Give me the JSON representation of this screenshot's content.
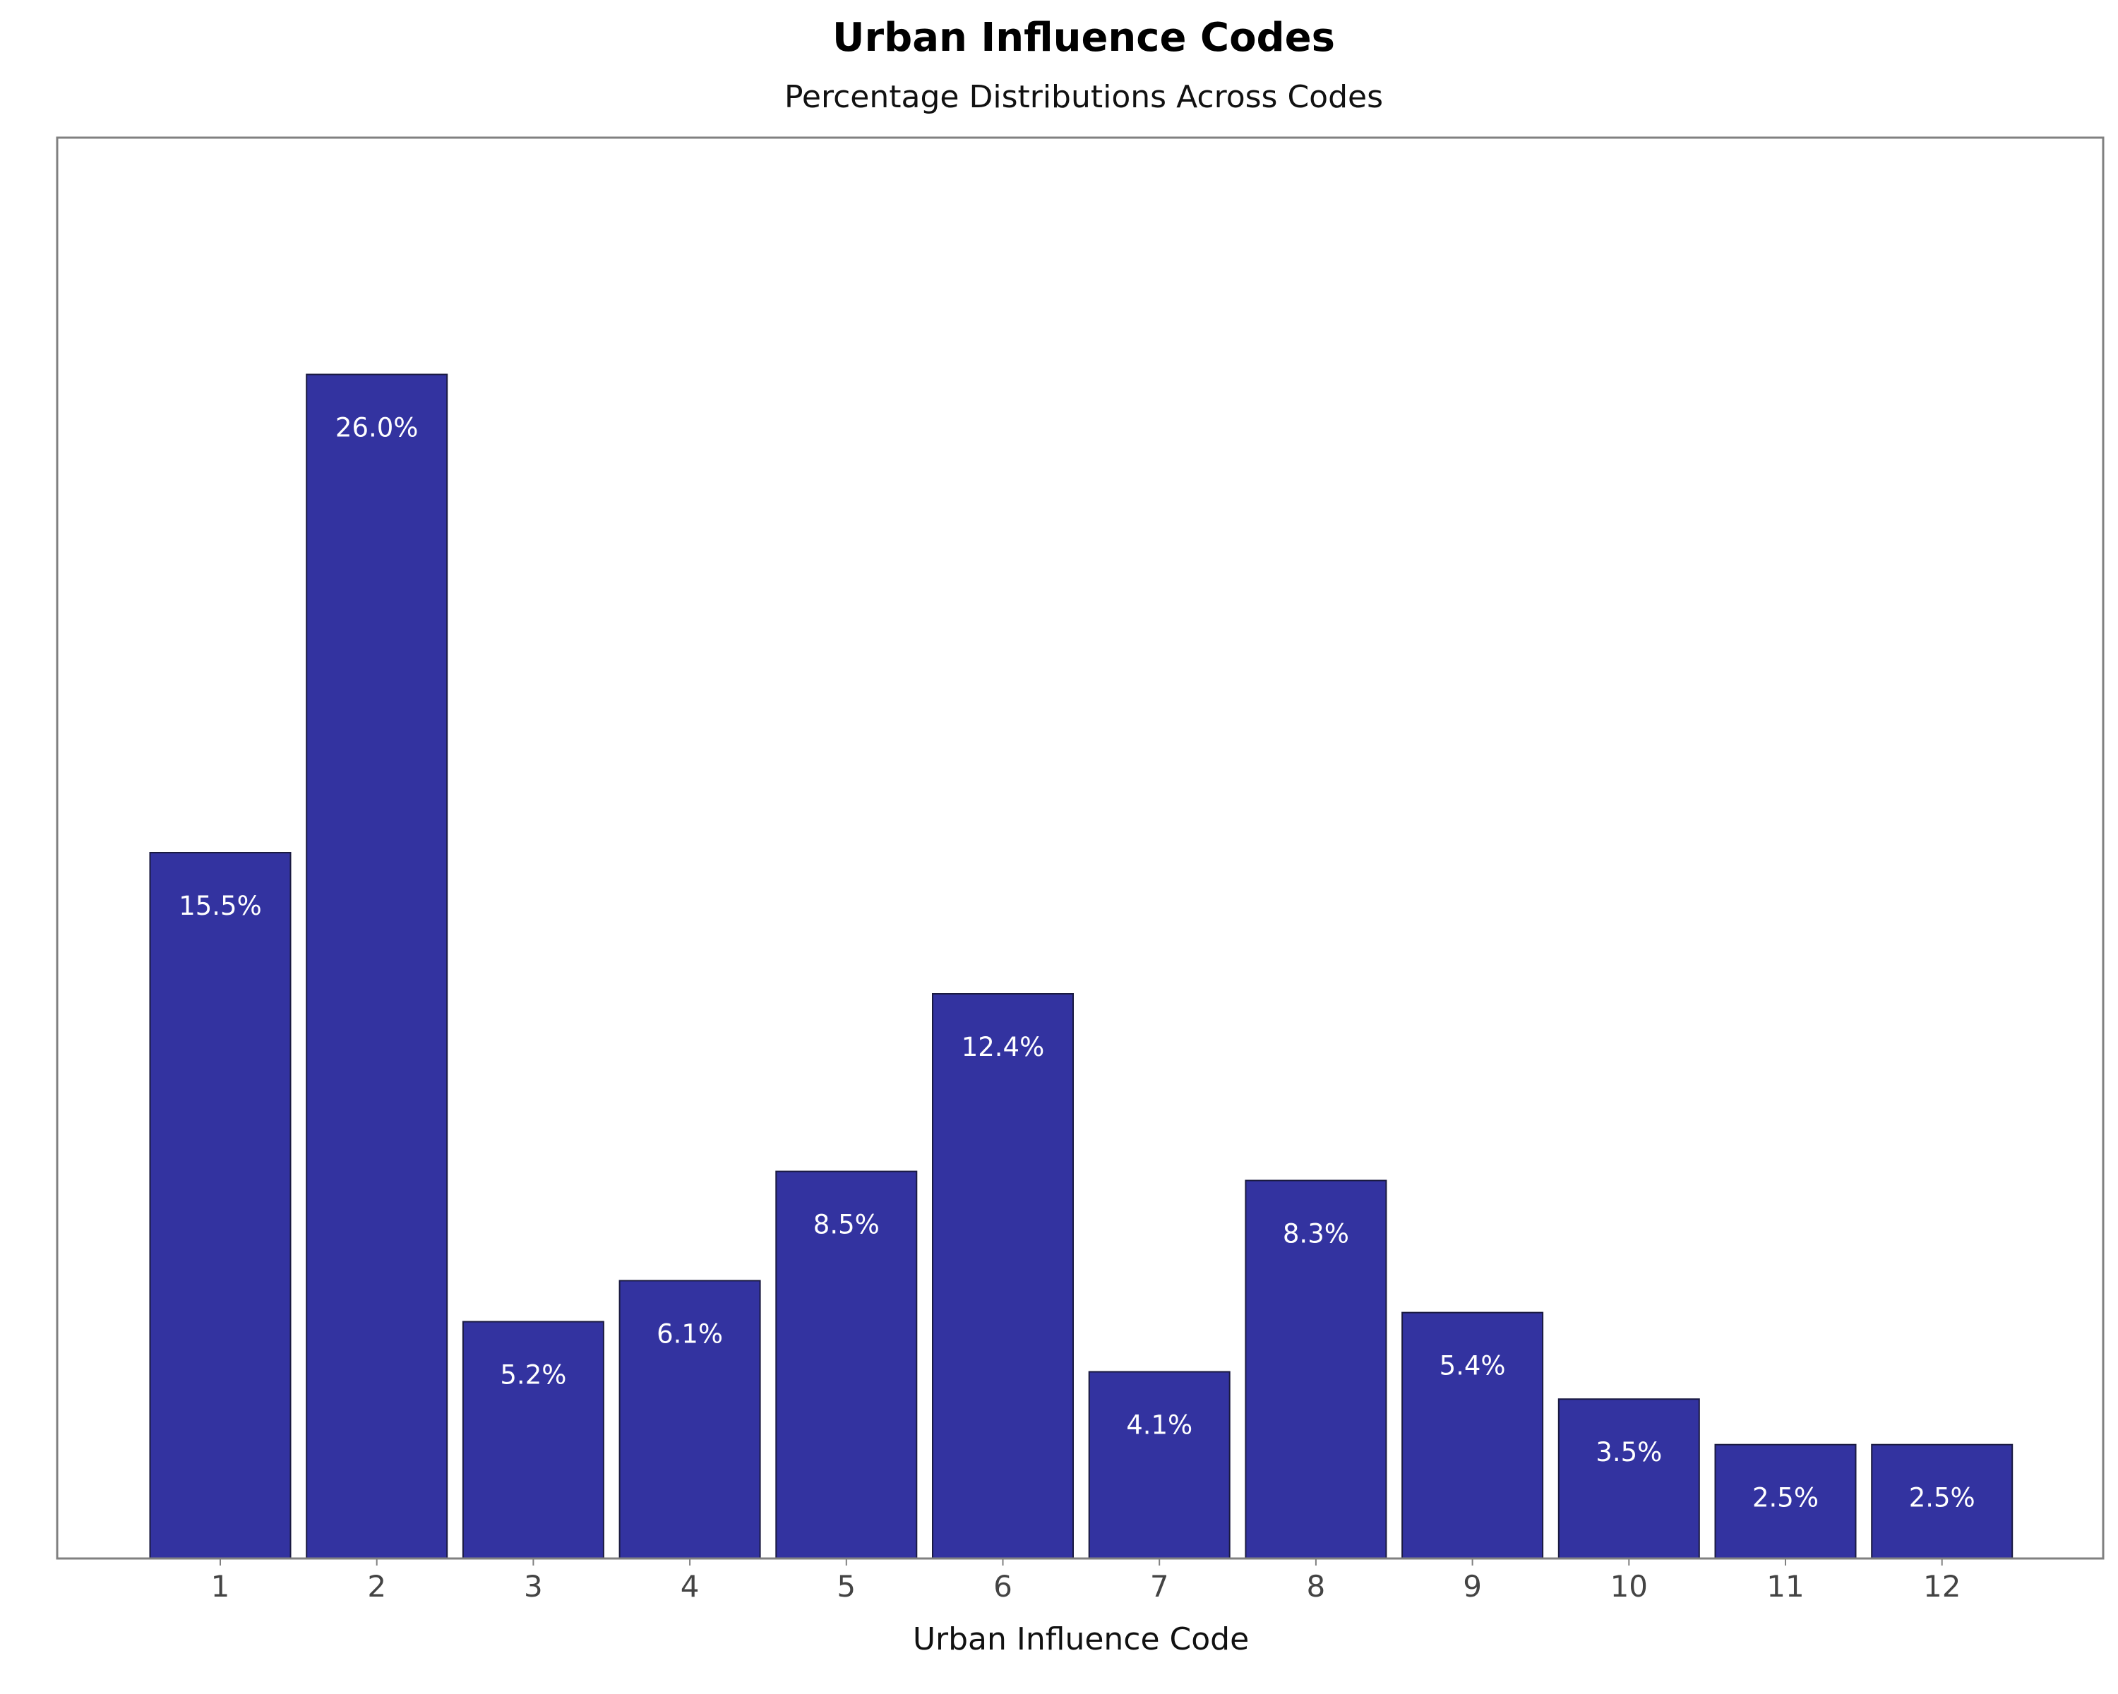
{
  "chart_data": {
    "type": "bar",
    "title": "Urban Influence Codes",
    "subtitle": "Percentage Distributions Across Codes",
    "xlabel": "Urban Influence Code",
    "ylabel": "",
    "categories": [
      "1",
      "2",
      "3",
      "4",
      "5",
      "6",
      "7",
      "8",
      "9",
      "10",
      "11",
      "12"
    ],
    "values": [
      15.5,
      26.0,
      5.2,
      6.1,
      8.5,
      12.4,
      4.1,
      8.3,
      5.4,
      3.5,
      2.5,
      2.5
    ],
    "data_labels": [
      "15.5%",
      "26.0%",
      "5.2%",
      "6.1%",
      "8.5%",
      "12.4%",
      "4.1%",
      "8.3%",
      "5.4%",
      "3.5%",
      "2.5%",
      "2.5%"
    ],
    "ylim": [
      0,
      31.2
    ],
    "grid": false,
    "y_ticks_visible": false,
    "legend": "none",
    "colors": {
      "bar_fill": "#3333a0",
      "bar_edge": "#1a1a40",
      "frame": "#808080",
      "label_text": "#ffffff"
    }
  }
}
